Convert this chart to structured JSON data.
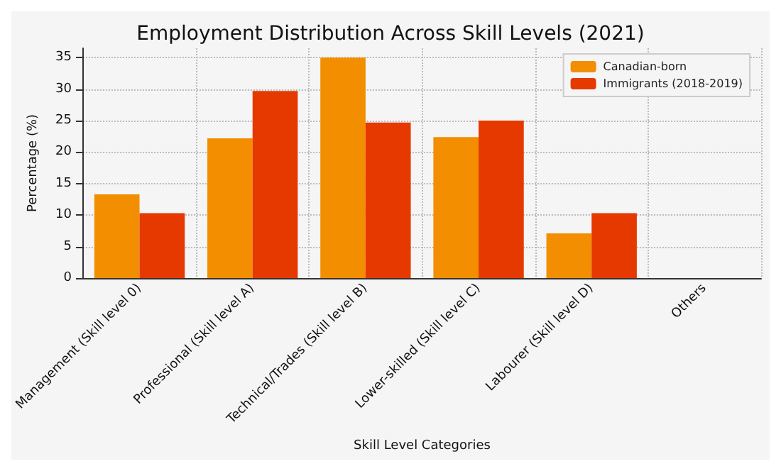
{
  "chart_data": {
    "type": "bar",
    "title": "Employment Distribution Across Skill Levels (2021)",
    "xlabel": "Skill Level Categories",
    "ylabel": "Percentage (%)",
    "categories": [
      "Management (Skill level 0)",
      "Professional (Skill level A)",
      "Technical/Trades (Skill level B)",
      "Lower-skilled (Skill level C)",
      "Labourer (Skill level D)",
      "Others"
    ],
    "series": [
      {
        "name": "Canadian-born",
        "color": "#f28e00",
        "values": [
          13.3,
          22.2,
          35.0,
          22.4,
          7.1,
          0
        ]
      },
      {
        "name": "Immigrants (2018-2019)",
        "color": "#e63900",
        "values": [
          10.3,
          29.7,
          24.7,
          25.0,
          10.3,
          0
        ]
      }
    ],
    "ylim": [
      0,
      36.5
    ],
    "yticks": [
      0,
      5,
      10,
      15,
      20,
      25,
      30,
      35
    ],
    "grid": true,
    "legend": "top right"
  }
}
